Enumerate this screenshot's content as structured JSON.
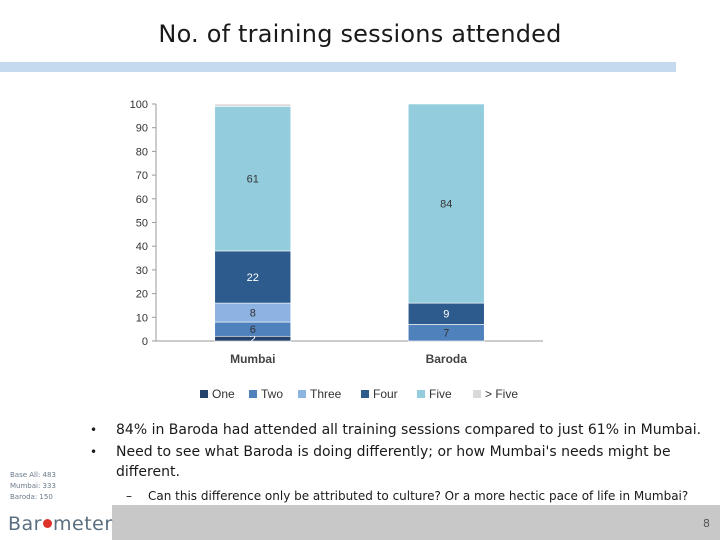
{
  "title": "No. of training sessions attended",
  "chart_data": {
    "type": "bar",
    "stacked": true,
    "categories": [
      "Mumbai",
      "Baroda"
    ],
    "ylim": [
      0,
      100
    ],
    "yticks": [
      0,
      10,
      20,
      30,
      40,
      50,
      60,
      70,
      80,
      90,
      100
    ],
    "series": [
      {
        "name": "One",
        "values": [
          2,
          0
        ],
        "color": "#24426b",
        "labels": [
          "2",
          "0"
        ]
      },
      {
        "name": "Two",
        "values": [
          6,
          7
        ],
        "color": "#4f81bd",
        "labels": [
          "6",
          "7"
        ]
      },
      {
        "name": "Three",
        "values": [
          8,
          0
        ],
        "color": "#8db3e2",
        "labels": [
          "8",
          ""
        ]
      },
      {
        "name": "Four",
        "values": [
          22,
          9
        ],
        "color": "#2d5b8e",
        "labels": [
          "22",
          "9"
        ]
      },
      {
        "name": "Five",
        "values": [
          61,
          84
        ],
        "color": "#93cddd",
        "labels": [
          "61",
          "84"
        ]
      },
      {
        "name": "> Five",
        "values": [
          1,
          0
        ],
        "color": "#d9d9d9",
        "labels": [
          "",
          ""
        ]
      }
    ],
    "legend_position": "bottom",
    "grid": false
  },
  "bullets": [
    "84% in Baroda had attended all training sessions compared to just 61% in Mumbai.",
    "Need to see what Baroda is doing differently; or how Mumbai's needs might be different."
  ],
  "subbullet": "Can this difference only be attributed to culture? Or a more hectic pace of life in Mumbai?",
  "subbullet_marker": "–",
  "base": {
    "all": "Base All: 483",
    "mumbai": "Mumbai: 333",
    "baroda": "Baroda: 150"
  },
  "logo": {
    "part1": "Bar",
    "part2": "meter"
  },
  "page_number": "8"
}
